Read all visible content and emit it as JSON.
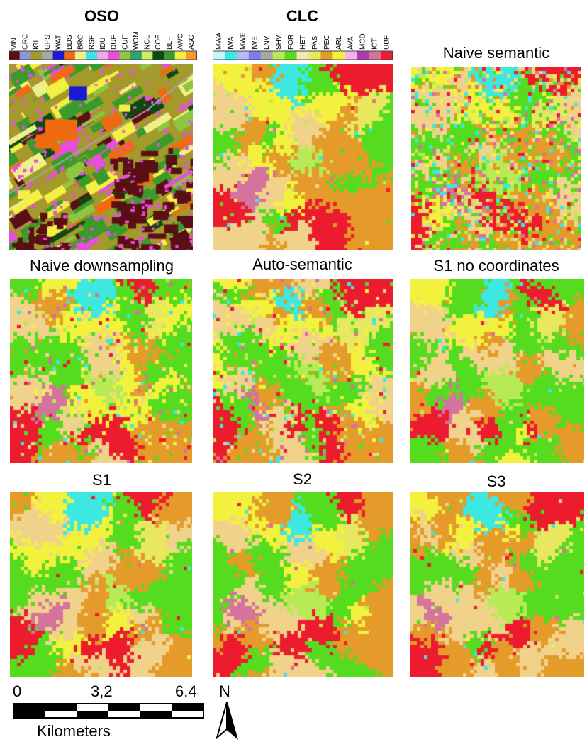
{
  "panels": {
    "oso": {
      "title": "OSO",
      "kind": "oso",
      "seed": 11
    },
    "clc": {
      "title": "CLC",
      "kind": "smooth",
      "seed": 21
    },
    "naive_semantic": {
      "title": "Naive semantic",
      "kind": "noisy",
      "seed": 31
    },
    "naive_downsampling": {
      "title": "Naive downsampling",
      "kind": "mid",
      "seed": 41
    },
    "auto_semantic": {
      "title": "Auto-semantic",
      "kind": "mid",
      "seed": 51
    },
    "s1_no_coordinates": {
      "title": "S1 no coordinates",
      "kind": "smooth",
      "seed": 61
    },
    "s1": {
      "title": "S1",
      "kind": "smooth",
      "seed": 71
    },
    "s2": {
      "title": "S2",
      "kind": "smooth",
      "seed": 81
    },
    "s3": {
      "title": "S3",
      "kind": "smooth",
      "seed": 91
    }
  },
  "legends": {
    "oso": [
      {
        "label": "VIN",
        "color": "#5a0f14"
      },
      {
        "label": "ORC",
        "color": "#8f96d6"
      },
      {
        "label": "IGL",
        "color": "#a39a2b"
      },
      {
        "label": "GPS",
        "color": "#a0a8a8"
      },
      {
        "label": "WAT",
        "color": "#1a1ad6"
      },
      {
        "label": "BDS",
        "color": "#f26a10"
      },
      {
        "label": "BRO",
        "color": "#f0f08a"
      },
      {
        "label": "RSF",
        "color": "#3fe0e6"
      },
      {
        "label": "IDU",
        "color": "#f2a6e8"
      },
      {
        "label": "DUF",
        "color": "#e84de0"
      },
      {
        "label": "CUF",
        "color": "#8ec63f"
      },
      {
        "label": "WOM",
        "color": "#2ea36b"
      },
      {
        "label": "NGL",
        "color": "#c8f060"
      },
      {
        "label": "COF",
        "color": "#0b4a12"
      },
      {
        "label": "BLF",
        "color": "#3a9a2a"
      },
      {
        "label": "AWC",
        "color": "#f3ef44"
      },
      {
        "label": "ASC",
        "color": "#f79a2a"
      }
    ],
    "clc": [
      {
        "label": "MWA",
        "color": "#c8f5f5"
      },
      {
        "label": "IWA",
        "color": "#3ce8e0"
      },
      {
        "label": "MWE",
        "color": "#b9b9f0"
      },
      {
        "label": "IWE",
        "color": "#7b7bea"
      },
      {
        "label": "LNV",
        "color": "#a7a7a7"
      },
      {
        "label": "SHV",
        "color": "#b7ea55"
      },
      {
        "label": "FOR",
        "color": "#55dc1e"
      },
      {
        "label": "HET",
        "color": "#f1e6b4"
      },
      {
        "label": "PAS",
        "color": "#e8e860"
      },
      {
        "label": "PEC",
        "color": "#e49b2a"
      },
      {
        "label": "ARL",
        "color": "#f2f23e"
      },
      {
        "label": "AVA",
        "color": "#f6b0f0"
      },
      {
        "label": "MCD",
        "color": "#b23ab0"
      },
      {
        "label": "ICT",
        "color": "#d3739e"
      },
      {
        "label": "UBF",
        "color": "#ec1c2e"
      }
    ]
  },
  "scale_bar": {
    "ticks": [
      "0",
      "3,2",
      "6.4"
    ],
    "unit": "Kilometers",
    "north_label": "N"
  }
}
